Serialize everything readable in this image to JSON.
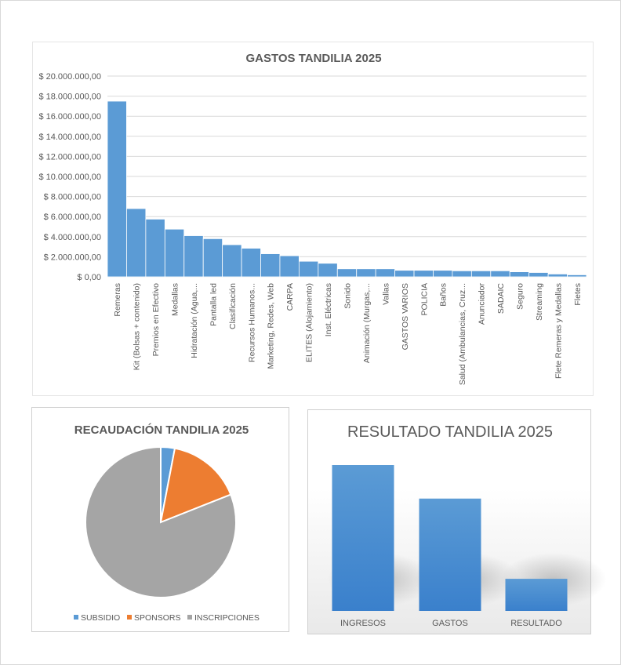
{
  "chart_data": [
    {
      "type": "bar",
      "title": "GASTOS TANDILIA 2025",
      "xlabel": "",
      "ylabel": "",
      "ylim": [
        0,
        20000000
      ],
      "yticks": [
        "$ 0,00",
        "$ 2.000.000,00",
        "$ 4.000.000,00",
        "$ 6.000.000,00",
        "$ 8.000.000,00",
        "$ 10.000.000,00",
        "$ 12.000.000,00",
        "$ 14.000.000,00",
        "$ 16.000.000,00",
        "$ 18.000.000,00",
        "$ 20.000.000,00"
      ],
      "grid": true,
      "color": "#5b9bd5",
      "categories": [
        "Remeras",
        "Kit (Bolsas + contenido)",
        "Premios en Efectivo",
        "Medallas",
        "Hidratación (Agua,...",
        "Pantalla led",
        "Clasificación",
        "Recursos Humanos...",
        "Marketing, Redes, Web",
        "CARPA",
        "ELITES (Alojamiento)",
        "Inst. Eléctricas",
        "Sonido",
        "Animación (Murgas,...",
        "Vallas",
        "GASTOS VARIOS",
        "POLICIA",
        "Baños",
        "Salud (Ambulancias, Cruz...",
        "Anunciador",
        "SADAIC",
        "Seguro",
        "Streaming",
        "Flete Remeras y Medallas",
        "Fletes"
      ],
      "values": [
        17500000,
        6800000,
        5750000,
        4750000,
        4100000,
        3800000,
        3200000,
        2850000,
        2300000,
        2100000,
        1550000,
        1350000,
        800000,
        800000,
        800000,
        650000,
        650000,
        650000,
        600000,
        600000,
        600000,
        500000,
        430000,
        280000,
        200000
      ]
    },
    {
      "type": "pie",
      "title": "RECAUDACIÓN TANDILIA 2025",
      "legend_position": "bottom",
      "categories": [
        "SUBSIDIO",
        "SPONSORS",
        "INSCRIPCIONES"
      ],
      "values": [
        3,
        16,
        81
      ],
      "colors": [
        "#5b9bd5",
        "#ed7d31",
        "#a5a5a5"
      ]
    },
    {
      "type": "bar",
      "title": "RESULTADO TANDILIA 2025",
      "xlabel": "",
      "ylabel": "",
      "grid": false,
      "color": "#4a8bd1",
      "categories": [
        "INGRESOS",
        "GASTOS",
        "RESULTADO"
      ],
      "values": [
        100,
        77,
        22
      ]
    }
  ]
}
